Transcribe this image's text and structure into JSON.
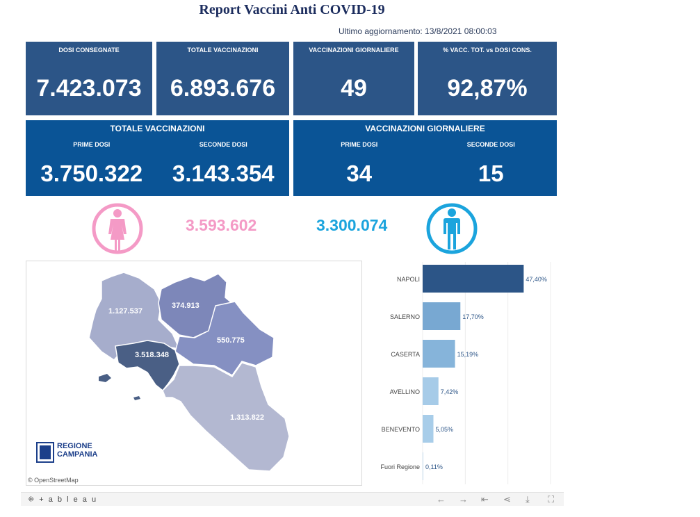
{
  "header": {
    "title": "Report Vaccini Anti COVID-19",
    "updated": "Ultimo aggiornamento: 13/8/2021 08:00:03"
  },
  "kpis": [
    {
      "label": "DOSI  CONSEGNATE",
      "value": "7.423.073"
    },
    {
      "label": "TOTALE VACCINAZIONI",
      "value": "6.893.676"
    },
    {
      "label": "VACCINAZIONI GIORNALIERE",
      "value": "49"
    },
    {
      "label": "% VACC. TOT. vs DOSI CONS.",
      "value": "92,87%"
    }
  ],
  "totals_panel": {
    "title": "TOTALE VACCINAZIONI",
    "first_label": "PRIME DOSI",
    "first_value": "3.750.322",
    "second_label": "SECONDE DOSI",
    "second_value": "3.143.354"
  },
  "daily_panel": {
    "title": "VACCINAZIONI GIORNALIERE",
    "first_label": "PRIME DOSI",
    "first_value": "34",
    "second_label": "SECONDE DOSI",
    "second_value": "15"
  },
  "gender": {
    "female_value": "3.593.602",
    "male_value": "3.300.074",
    "female_color": "#f49ac6",
    "male_color": "#1ba4dd",
    "female_icon": "female-icon",
    "male_icon": "male-icon"
  },
  "map": {
    "labels": {
      "caserta": "1.127.537",
      "benevento": "374.913",
      "avellino": "550.775",
      "napoli": "3.518.348",
      "salerno": "1.313.822"
    },
    "attribution": "© OpenStreetMap",
    "logo_line1": "REGIONE",
    "logo_line2": "CAMPANIA"
  },
  "chart_data": {
    "type": "bar",
    "orientation": "horizontal",
    "categories": [
      "NAPOLI",
      "SALERNO",
      "CASERTA",
      "AVELLINO",
      "BENEVENTO",
      "Fuori Regione"
    ],
    "values": [
      47.4,
      17.7,
      15.19,
      7.42,
      5.05,
      0.11
    ],
    "value_labels": [
      "47,40%",
      "17,70%",
      "15,19%",
      "7,42%",
      "5,05%",
      "0,11%"
    ],
    "colors": [
      "#2c5587",
      "#78a8d2",
      "#86b4da",
      "#a6cbe8",
      "#a8cde9",
      "#c5def1"
    ],
    "xlim": [
      0,
      60
    ],
    "grid": true
  },
  "toolbar": {
    "brand": "+ a b l e a u"
  }
}
